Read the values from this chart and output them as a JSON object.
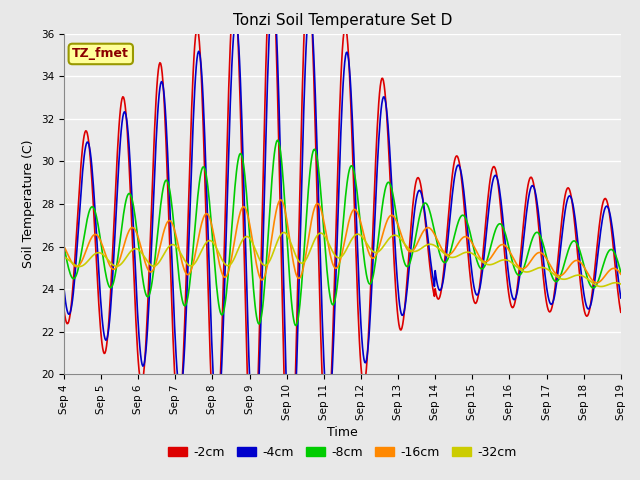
{
  "title": "Tonzi Soil Temperature Set D",
  "xlabel": "Time",
  "ylabel": "Soil Temperature (C)",
  "ylim": [
    20,
    36
  ],
  "xlim": [
    0,
    360
  ],
  "background_color": "#e8e8e8",
  "plot_bg": "#ebebeb",
  "annotation_text": "TZ_fmet",
  "annotation_color": "#8B0000",
  "annotation_bg": "#ffff99",
  "annotation_border": "#999900",
  "x_tick_labels": [
    "Sep 4",
    "Sep 5",
    "Sep 6",
    "Sep 7",
    "Sep 8",
    "Sep 9",
    "Sep 10",
    "Sep 11",
    "Sep 12",
    "Sep 13",
    "Sep 14",
    "Sep 15",
    "Sep 16",
    "Sep 17",
    "Sep 18",
    "Sep 19"
  ],
  "x_tick_positions": [
    0,
    24,
    48,
    72,
    96,
    120,
    144,
    168,
    192,
    216,
    240,
    264,
    288,
    312,
    336,
    360
  ],
  "colors": {
    "neg2cm": "#dd0000",
    "neg4cm": "#0000cc",
    "neg8cm": "#00cc00",
    "neg16cm": "#ff8800",
    "neg32cm": "#cccc00"
  },
  "legend_colors": [
    "#dd0000",
    "#0000cc",
    "#00cc00",
    "#ff8800",
    "#cccc00"
  ],
  "legend_labels": [
    "-2cm",
    "-4cm",
    "-8cm",
    "-16cm",
    "-32cm"
  ],
  "linewidth": 1.2,
  "title_fontsize": 11,
  "tick_fontsize": 7.5,
  "label_fontsize": 9,
  "legend_fontsize": 9
}
